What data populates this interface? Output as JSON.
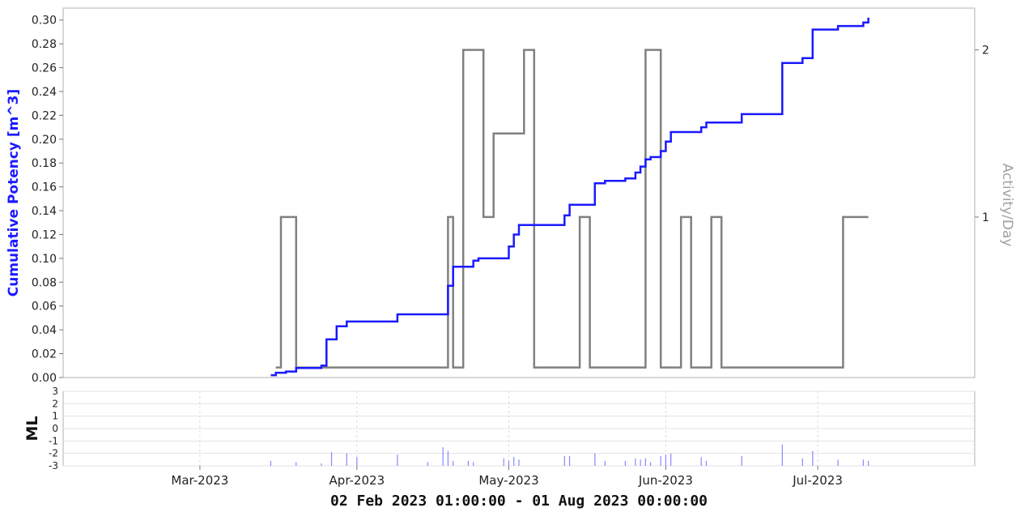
{
  "chart_data": [
    {
      "type": "line",
      "ylabel": "Cumulative Potency [m^3]",
      "y2label": "Activity/Day",
      "xlabel": "02 Feb 2023 01:00:00 - 01 Aug 2023 00:00:00",
      "xlim": [
        "2023-02-02",
        "2023-08-01"
      ],
      "ylim": [
        0,
        0.31
      ],
      "y2lim": [
        0.04,
        2.25
      ],
      "yticks": [
        "0.00",
        "0.02",
        "0.04",
        "0.06",
        "0.08",
        "0.10",
        "0.12",
        "0.14",
        "0.16",
        "0.18",
        "0.20",
        "0.22",
        "0.24",
        "0.26",
        "0.28",
        "0.30"
      ],
      "y2ticks": [
        "1",
        "2"
      ],
      "grid": false,
      "colors": {
        "cumulative": "#1a1aff",
        "activity": "#808080"
      },
      "series": [
        {
          "name": "Cumulative Potency [m^3]",
          "axis": "left",
          "step": true,
          "points": [
            [
              "2023-03-15",
              0.002
            ],
            [
              "2023-03-16",
              0.004
            ],
            [
              "2023-03-18",
              0.005
            ],
            [
              "2023-03-20",
              0.008
            ],
            [
              "2023-03-25",
              0.01
            ],
            [
              "2023-03-26",
              0.032
            ],
            [
              "2023-03-28",
              0.043
            ],
            [
              "2023-03-30",
              0.047
            ],
            [
              "2023-04-09",
              0.053
            ],
            [
              "2023-04-19",
              0.077
            ],
            [
              "2023-04-20",
              0.093
            ],
            [
              "2023-04-24",
              0.098
            ],
            [
              "2023-04-25",
              0.1
            ],
            [
              "2023-05-01",
              0.11
            ],
            [
              "2023-05-02",
              0.12
            ],
            [
              "2023-05-03",
              0.128
            ],
            [
              "2023-05-12",
              0.136
            ],
            [
              "2023-05-13",
              0.145
            ],
            [
              "2023-05-18",
              0.163
            ],
            [
              "2023-05-20",
              0.165
            ],
            [
              "2023-05-24",
              0.167
            ],
            [
              "2023-05-26",
              0.172
            ],
            [
              "2023-05-27",
              0.177
            ],
            [
              "2023-05-28",
              0.183
            ],
            [
              "2023-05-29",
              0.185
            ],
            [
              "2023-05-31",
              0.19
            ],
            [
              "2023-06-01",
              0.198
            ],
            [
              "2023-06-02",
              0.206
            ],
            [
              "2023-06-08",
              0.21
            ],
            [
              "2023-06-09",
              0.214
            ],
            [
              "2023-06-16",
              0.221
            ],
            [
              "2023-06-24",
              0.264
            ],
            [
              "2023-06-28",
              0.268
            ],
            [
              "2023-06-30",
              0.292
            ],
            [
              "2023-07-05",
              0.295
            ],
            [
              "2023-07-10",
              0.298
            ],
            [
              "2023-07-11",
              0.302
            ]
          ]
        },
        {
          "name": "Activity/Day",
          "axis": "right",
          "step": true,
          "points": [
            [
              "2023-03-16",
              0.1
            ],
            [
              "2023-03-17",
              1
            ],
            [
              "2023-03-20",
              0.1
            ],
            [
              "2023-04-19",
              1
            ],
            [
              "2023-04-20",
              0.1
            ],
            [
              "2023-04-22",
              2
            ],
            [
              "2023-04-26",
              1
            ],
            [
              "2023-04-28",
              1.5
            ],
            [
              "2023-05-04",
              2
            ],
            [
              "2023-05-06",
              0.1
            ],
            [
              "2023-05-15",
              1
            ],
            [
              "2023-05-17",
              0.1
            ],
            [
              "2023-05-28",
              2
            ],
            [
              "2023-05-31",
              0.1
            ],
            [
              "2023-06-04",
              1
            ],
            [
              "2023-06-06",
              0.1
            ],
            [
              "2023-06-10",
              1
            ],
            [
              "2023-06-12",
              0.1
            ],
            [
              "2023-07-06",
              1
            ],
            [
              "2023-07-11",
              1
            ]
          ]
        }
      ]
    },
    {
      "type": "bar",
      "ylabel": "ML",
      "ylim": [
        -3,
        3
      ],
      "yticks": [
        "3",
        "2",
        "1",
        "0",
        "-1",
        "-2",
        "-3"
      ],
      "xticks": [
        "Mar-2023",
        "Apr-2023",
        "May-2023",
        "Jun-2023",
        "Jul-2023"
      ],
      "xtick_dates": [
        "2023-03-01",
        "2023-04-01",
        "2023-05-01",
        "2023-06-01",
        "2023-07-01"
      ],
      "grid": true,
      "colors": {
        "event": "#8888ff"
      },
      "events": [
        [
          "2023-03-15",
          -2.6
        ],
        [
          "2023-03-20",
          -2.7
        ],
        [
          "2023-03-25",
          -2.8
        ],
        [
          "2023-03-27",
          -1.9
        ],
        [
          "2023-03-30",
          -2.0
        ],
        [
          "2023-04-01",
          -2.3
        ],
        [
          "2023-04-09",
          -2.1
        ],
        [
          "2023-04-15",
          -2.7
        ],
        [
          "2023-04-18",
          -1.5
        ],
        [
          "2023-04-19",
          -1.8
        ],
        [
          "2023-04-20",
          -2.6
        ],
        [
          "2023-04-23",
          -2.6
        ],
        [
          "2023-04-24",
          -2.7
        ],
        [
          "2023-04-30",
          -2.4
        ],
        [
          "2023-05-01",
          -2.6
        ],
        [
          "2023-05-02",
          -2.3
        ],
        [
          "2023-05-03",
          -2.5
        ],
        [
          "2023-05-12",
          -2.2
        ],
        [
          "2023-05-13",
          -2.2
        ],
        [
          "2023-05-18",
          -2.0
        ],
        [
          "2023-05-20",
          -2.6
        ],
        [
          "2023-05-24",
          -2.6
        ],
        [
          "2023-05-26",
          -2.4
        ],
        [
          "2023-05-27",
          -2.5
        ],
        [
          "2023-05-28",
          -2.4
        ],
        [
          "2023-05-29",
          -2.7
        ],
        [
          "2023-05-31",
          -2.2
        ],
        [
          "2023-06-01",
          -2.1
        ],
        [
          "2023-06-02",
          -2.0
        ],
        [
          "2023-06-08",
          -2.3
        ],
        [
          "2023-06-09",
          -2.6
        ],
        [
          "2023-06-16",
          -2.2
        ],
        [
          "2023-06-24",
          -1.3
        ],
        [
          "2023-06-28",
          -2.4
        ],
        [
          "2023-06-30",
          -1.8
        ],
        [
          "2023-07-05",
          -2.5
        ],
        [
          "2023-07-10",
          -2.5
        ],
        [
          "2023-07-11",
          -2.6
        ]
      ]
    }
  ]
}
